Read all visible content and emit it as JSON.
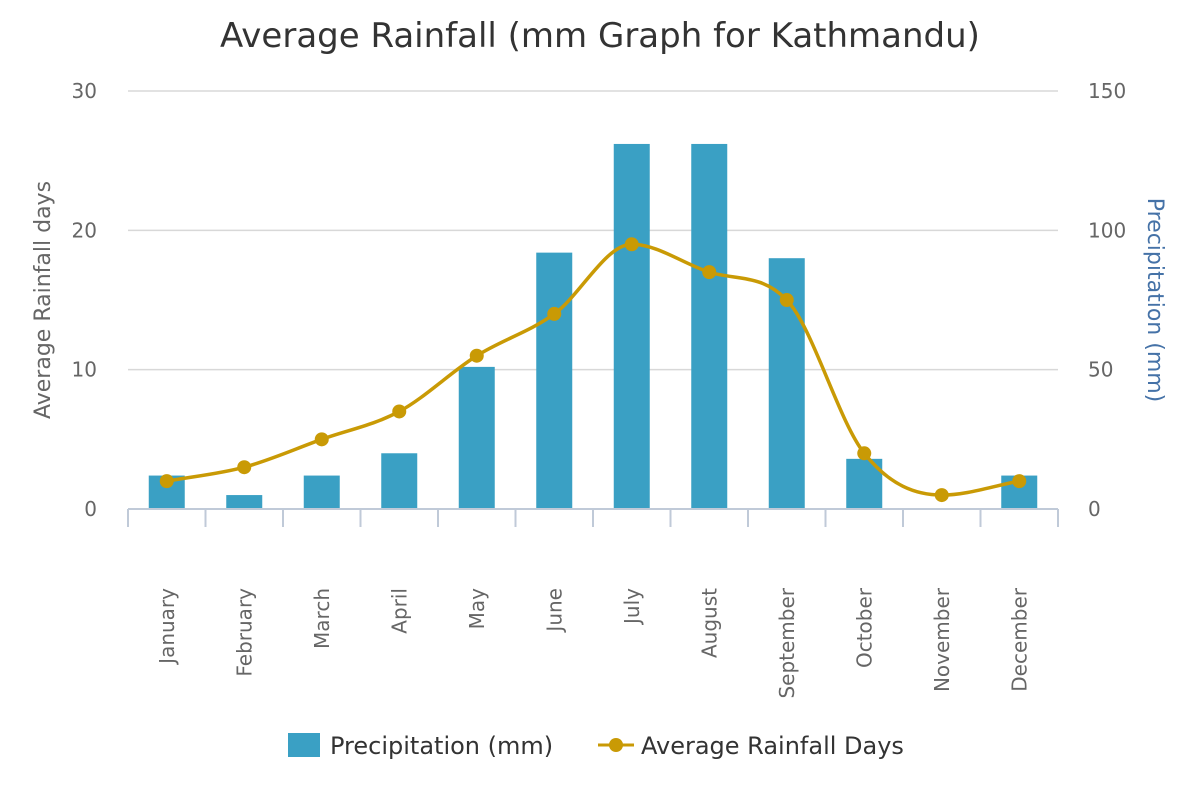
{
  "chart_data": {
    "type": "bar",
    "title": "Average Rainfall (mm Graph for Kathmandu)",
    "categories": [
      "January",
      "February",
      "March",
      "April",
      "May",
      "June",
      "July",
      "August",
      "September",
      "October",
      "November",
      "December"
    ],
    "series": [
      {
        "name": "Precipitation (mm)",
        "type": "bar",
        "axis": "right",
        "color": "#3aa0c4",
        "values": [
          12,
          5,
          12,
          20,
          51,
          92,
          131,
          131,
          90,
          18,
          0,
          12
        ]
      },
      {
        "name": "Average Rainfall Days",
        "type": "line",
        "axis": "left",
        "color": "#c99a05",
        "values": [
          2,
          3,
          5,
          7,
          11,
          14,
          19,
          17,
          15,
          4,
          1,
          2
        ]
      }
    ],
    "y_left": {
      "label": "Average Rainfall days",
      "range": [
        0,
        30
      ],
      "ticks": [
        0,
        10,
        20,
        30
      ]
    },
    "y_right": {
      "label": "Precipitation (mm)",
      "range": [
        0,
        150
      ],
      "ticks": [
        0,
        50,
        100,
        150
      ]
    },
    "grid": true,
    "legend": "bottom-center"
  }
}
